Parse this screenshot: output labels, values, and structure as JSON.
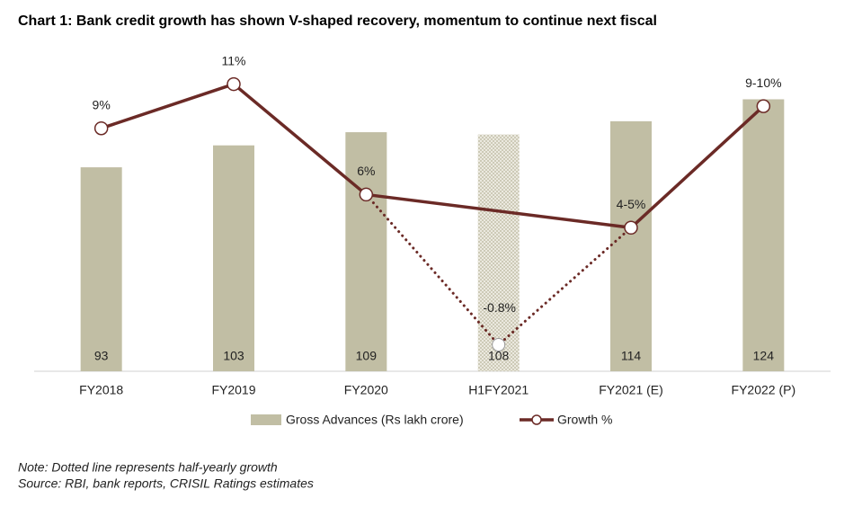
{
  "chart_data": {
    "type": "bar-line",
    "title": "Chart 1: Bank credit growth has shown V-shaped recovery, momentum to continue next fiscal",
    "categories": [
      "FY2018",
      "FY2019",
      "FY2020",
      "H1FY2021",
      "FY2021 (E)",
      "FY2022 (P)"
    ],
    "ylim": [
      0,
      141
    ],
    "y2lim": [
      -2,
      12
    ],
    "series": [
      {
        "name": "Gross Advances (Rs lakh crore)",
        "type": "bar",
        "color": "#c1bea4",
        "values": [
          93,
          103,
          109,
          108,
          114,
          124
        ],
        "hatched": "H1FY2021"
      },
      {
        "name": "Growth %",
        "type": "line",
        "axis": "y2",
        "color": "#6b2a26",
        "x": [
          "FY2018",
          "FY2019",
          "FY2020",
          "FY2021 (E)",
          "FY2022 (P)"
        ],
        "values": [
          9,
          11,
          6,
          4.5,
          10
        ],
        "value_labels": [
          "9%",
          "11%",
          "6%",
          "4-5%",
          "9-10%"
        ]
      },
      {
        "type": "line",
        "axis": "y2",
        "color": "#6b2a26",
        "dashed": true,
        "x": [
          "H1FY2021"
        ],
        "values": [
          -0.8
        ],
        "value_labels": [
          "-0.8%"
        ]
      }
    ],
    "notes": [
      "Note: Dotted line represents half-yearly growth",
      "Source: RBI, bank reports, CRISIL Ratings estimates"
    ]
  }
}
